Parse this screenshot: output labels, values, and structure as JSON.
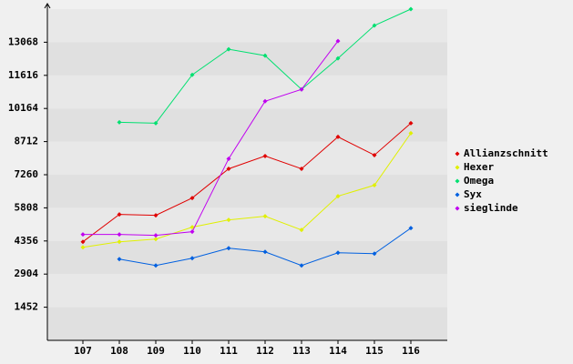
{
  "chart_data": {
    "type": "line",
    "categories": [
      "107",
      "108",
      "109",
      "110",
      "111",
      "112",
      "113",
      "114",
      "115",
      "116"
    ],
    "series": [
      {
        "name": "Allianzschnitt",
        "color": "#e00000",
        "values": [
          4320,
          5520,
          5480,
          6240,
          7520,
          8080,
          7520,
          8920,
          8120,
          9520
        ]
      },
      {
        "name": "Hexer",
        "color": "#e0f000",
        "values": [
          4080,
          4320,
          4440,
          4960,
          5280,
          5440,
          4840,
          6320,
          6800,
          9080
        ]
      },
      {
        "name": "Omega",
        "color": "#00e070",
        "values": [
          null,
          9560,
          9520,
          11640,
          12760,
          12480,
          11000,
          12360,
          13800,
          14520
        ]
      },
      {
        "name": "Syx",
        "color": "#0060e0",
        "values": [
          null,
          3560,
          3280,
          3600,
          4040,
          3880,
          3280,
          3840,
          3800,
          4920
        ]
      },
      {
        "name": "sieglinde",
        "color": "#c000f0",
        "values": [
          4640,
          4640,
          4600,
          4760,
          7960,
          10480,
          11000,
          13120,
          null,
          null
        ]
      }
    ],
    "ylim": [
      0,
      14520
    ],
    "yticks": [
      1452,
      2904,
      4356,
      5808,
      7260,
      8712,
      10164,
      11616,
      13068
    ],
    "grid": true
  }
}
